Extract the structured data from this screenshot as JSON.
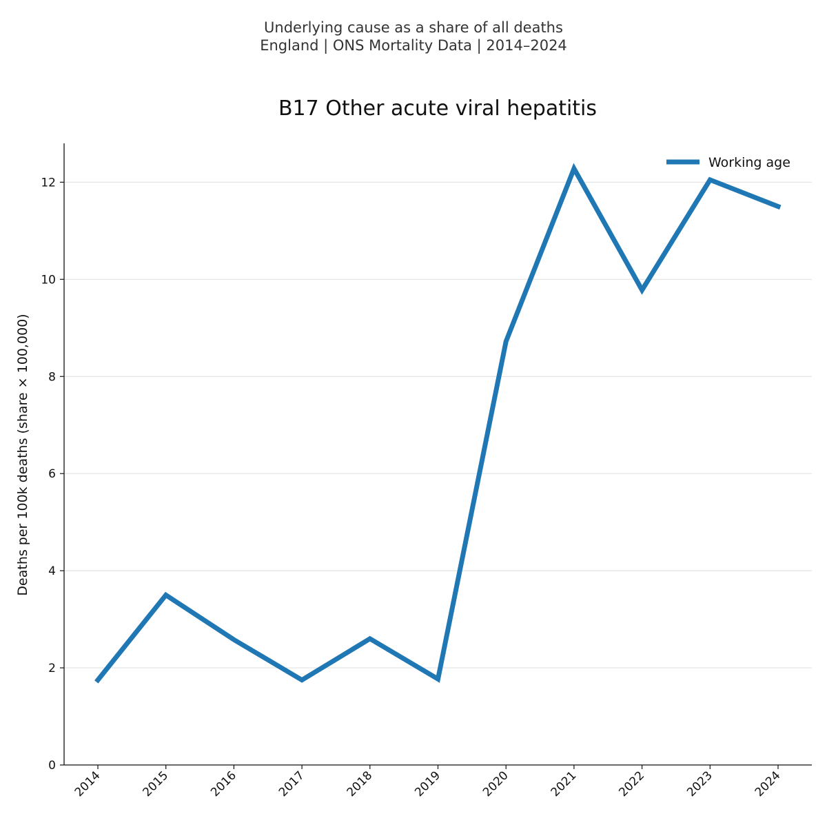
{
  "figure": {
    "suptitle_line1": "Underlying cause as a share of all deaths",
    "suptitle_line2": "England | ONS Mortality Data | 2014–2024"
  },
  "chart_data": {
    "type": "line",
    "title": "B17 Other acute viral hepatitis",
    "xlabel": "",
    "ylabel": "Deaths per 100k deaths (share × 100,000)",
    "x": [
      "2014",
      "2015",
      "2016",
      "2017",
      "2018",
      "2019",
      "2020",
      "2021",
      "2022",
      "2023",
      "2024"
    ],
    "series": [
      {
        "name": "Working age",
        "color": "#1f77b4",
        "values": [
          1.75,
          3.5,
          2.58,
          1.75,
          2.6,
          1.77,
          8.72,
          12.28,
          9.78,
          12.05,
          11.5
        ]
      }
    ],
    "ylim": [
      0,
      12.8
    ],
    "yticks": [
      0,
      2,
      4,
      6,
      8,
      10,
      12
    ],
    "grid": "horizontal",
    "legend_position": "top-right"
  }
}
